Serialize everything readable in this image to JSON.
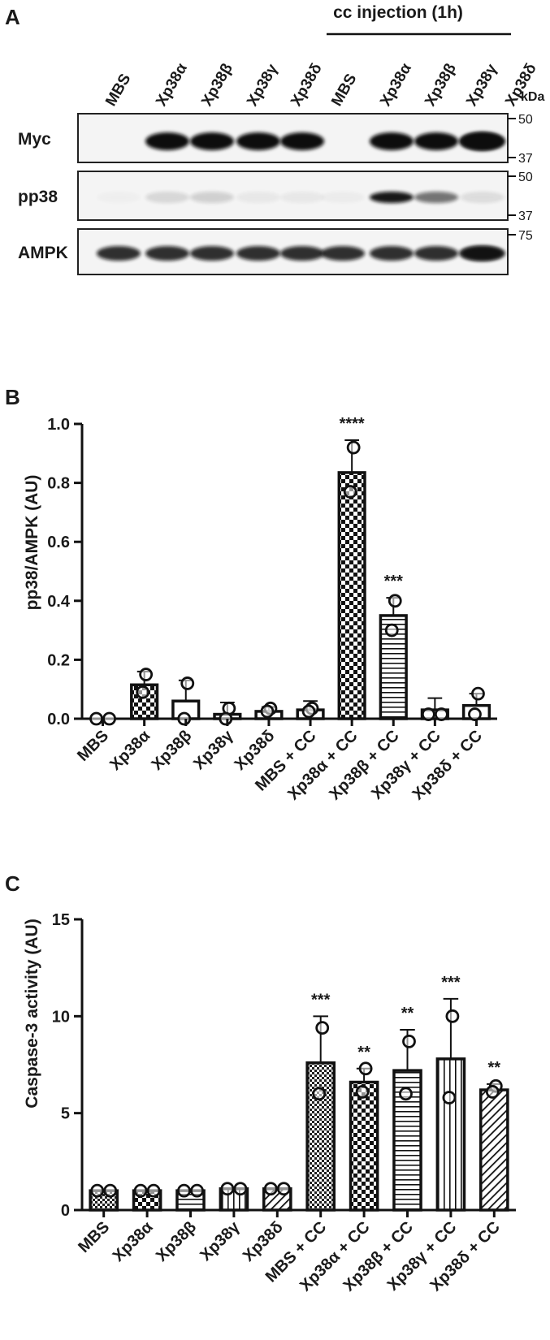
{
  "blot": {
    "panel_label": "A",
    "header": "cc injection (1h)",
    "kda_label": "kDa",
    "lanes": [
      "MBS",
      "Xp38α",
      "Xp38β",
      "Xp38γ",
      "Xp38δ",
      "MBS",
      "Xp38α",
      "Xp38β",
      "Xp38γ",
      "Xp38δ"
    ],
    "rows": [
      {
        "label": "Myc",
        "markers": [
          "50",
          "37"
        ],
        "intensity": [
          0,
          1,
          1,
          1,
          1,
          0,
          1,
          1,
          1,
          1
        ]
      },
      {
        "label": "pp38",
        "markers": [
          "50",
          "37"
        ],
        "intensity": [
          0.02,
          0.12,
          0.15,
          0.05,
          0.05,
          0.03,
          0.95,
          0.55,
          0.04,
          0.06
        ]
      },
      {
        "label": "AMPK",
        "markers": [
          "75"
        ],
        "intensity": [
          0.85,
          0.85,
          0.85,
          0.85,
          0.85,
          0.85,
          0.85,
          0.85,
          0.85,
          0.85
        ]
      }
    ],
    "colors": {
      "band": "#111111",
      "frame": "#222222"
    }
  },
  "chart_data": [
    {
      "panel_label": "B",
      "type": "bar",
      "title": "",
      "xlabel": "",
      "ylabel": "pp38/AMPK  (AU)",
      "ylim": [
        0,
        1.0
      ],
      "yticks": [
        "0.0",
        "0.2",
        "0.4",
        "0.6",
        "0.8",
        "1.0"
      ],
      "categories": [
        "MBS",
        "Xp38α",
        "Xp38β",
        "Xp38γ",
        "Xp38δ",
        "MBS + CC",
        "Xp38α + CC",
        "Xp38β + CC",
        "Xp38γ + CC",
        "Xp38δ + CC"
      ],
      "values": [
        0.0,
        0.115,
        0.06,
        0.015,
        0.025,
        0.03,
        0.835,
        0.35,
        0.03,
        0.045
      ],
      "errors": [
        0.0,
        0.045,
        0.07,
        0.04,
        0.015,
        0.03,
        0.11,
        0.06,
        0.04,
        0.04
      ],
      "points": [
        [
          0.0,
          0.0
        ],
        [
          0.15,
          0.09
        ],
        [
          0.12,
          0.0
        ],
        [
          0.035,
          0.0
        ],
        [
          0.035,
          0.025
        ],
        [
          0.035,
          0.025
        ],
        [
          0.92,
          0.77
        ],
        [
          0.4,
          0.3
        ],
        [
          0.015,
          0.015
        ],
        [
          0.085,
          0.015
        ]
      ],
      "patterns": [
        "solid",
        "checker",
        "solid",
        "solid",
        "solid",
        "solid",
        "checker",
        "hlines",
        "solid",
        "solid"
      ],
      "significance": [
        "",
        "",
        "",
        "",
        "",
        "",
        "****",
        "***",
        "",
        ""
      ]
    },
    {
      "panel_label": "C",
      "type": "bar",
      "title": "",
      "xlabel": "",
      "ylabel": "Caspase-3 activity (AU)",
      "ylim": [
        0,
        15
      ],
      "yticks": [
        "0",
        "5",
        "10",
        "15"
      ],
      "categories": [
        "MBS",
        "Xp38α",
        "Xp38β",
        "Xp38γ",
        "Xp38δ",
        "MBS + CC",
        "Xp38α + CC",
        "Xp38β + CC",
        "Xp38γ + CC",
        "Xp38δ + CC"
      ],
      "values": [
        1.0,
        1.0,
        1.0,
        1.1,
        1.1,
        7.6,
        6.6,
        7.2,
        7.8,
        6.2
      ],
      "errors": [
        0.0,
        0.0,
        0.0,
        0.0,
        0.0,
        2.4,
        0.7,
        2.1,
        3.1,
        0.3
      ],
      "points": [
        [
          1.0,
          1.0
        ],
        [
          1.0,
          1.0
        ],
        [
          1.0,
          1.0
        ],
        [
          1.1,
          1.1
        ],
        [
          1.1,
          1.1
        ],
        [
          9.4,
          6.0
        ],
        [
          7.3,
          6.1
        ],
        [
          8.7,
          6.0
        ],
        [
          10.0,
          5.8
        ],
        [
          6.4,
          6.1
        ]
      ],
      "patterns": [
        "dense-checker",
        "checker",
        "hlines",
        "vlines",
        "diag",
        "dense-checker",
        "checker",
        "hlines",
        "vlines",
        "diag"
      ],
      "significance": [
        "",
        "",
        "",
        "",
        "",
        "***",
        "**",
        "**",
        "***",
        "**"
      ]
    }
  ]
}
